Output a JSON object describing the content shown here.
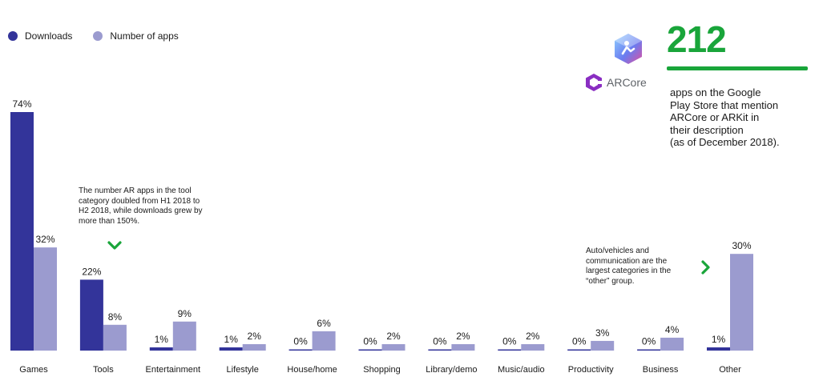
{
  "legend": {
    "downloads": "Downloads",
    "apps": "Number of apps"
  },
  "colors": {
    "downloads": "#33349a",
    "apps": "#9b9bcf",
    "accent_green": "#19a53a",
    "arcore_purple": "#8a2ec2"
  },
  "stat": {
    "number": "212",
    "description": [
      "apps on the Google",
      "Play Store that mention",
      "ARCore or ARKit in",
      "their description",
      "(as of December 2018)."
    ]
  },
  "logos": {
    "arkit_icon": "arkit-logo-icon",
    "arcore_label": "ARCore"
  },
  "notes": {
    "tools": [
      "The number AR apps in the tool",
      "category doubled from H1 2018 to",
      "H2 2018, while downloads grew by",
      "more than 150%."
    ],
    "other": [
      "Auto/vehicles and",
      "communication are the",
      "largest categories in the",
      "“other” group."
    ]
  },
  "chart_data": {
    "type": "bar",
    "categories": [
      "Games",
      "Tools",
      "Entertainment",
      "Lifestyle",
      "House/home",
      "Shopping",
      "Library/demo",
      "Music/audio",
      "Productivity",
      "Business",
      "Other"
    ],
    "series": [
      {
        "name": "Downloads",
        "values": [
          74,
          22,
          1,
          1,
          0,
          0,
          0,
          0,
          0,
          0,
          1
        ],
        "labels": [
          "74%",
          "22%",
          "1%",
          "1%",
          "0%",
          "0%",
          "0%",
          "0%",
          "0%",
          "0%",
          "1%"
        ]
      },
      {
        "name": "Number of apps",
        "values": [
          32,
          8,
          9,
          2,
          6,
          2,
          2,
          2,
          3,
          4,
          30
        ],
        "labels": [
          "32%",
          "8%",
          "9%",
          "2%",
          "6%",
          "2%",
          "2%",
          "2%",
          "3%",
          "4%",
          "30%"
        ]
      }
    ],
    "ylim": [
      0,
      74
    ],
    "grid": false,
    "legend_position": "top-left"
  }
}
